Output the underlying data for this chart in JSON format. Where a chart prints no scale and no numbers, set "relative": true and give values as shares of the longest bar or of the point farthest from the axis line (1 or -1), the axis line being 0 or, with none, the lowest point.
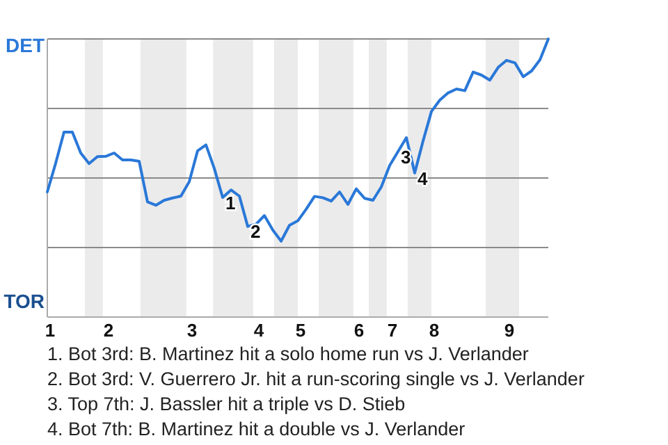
{
  "chart_data": {
    "type": "line",
    "relative": true,
    "grid": "y",
    "marker": "none",
    "line_style": "solid",
    "categories": [
      "1",
      null,
      null,
      null,
      null,
      null,
      null,
      "2",
      null,
      null,
      null,
      null,
      null,
      null,
      null,
      null,
      null,
      "3",
      null,
      null,
      null,
      null,
      null,
      null,
      null,
      "4",
      null,
      null,
      null,
      null,
      "5",
      null,
      null,
      null,
      null,
      null,
      null,
      "6",
      null,
      null,
      null,
      "7",
      null,
      null,
      null,
      null,
      "8",
      null,
      null,
      null,
      null,
      null,
      null,
      null,
      null,
      "9",
      null,
      null,
      null,
      null,
      null
    ],
    "series": [
      {
        "color": "#2a78d8",
        "values": [
          0.45,
          0.553,
          0.665,
          0.665,
          0.59,
          0.552,
          0.577,
          0.578,
          0.59,
          0.565,
          0.565,
          0.56,
          0.414,
          0.402,
          0.42,
          0.428,
          0.435,
          0.487,
          0.598,
          0.619,
          0.534,
          0.43,
          0.457,
          0.435,
          0.326,
          0.334,
          0.365,
          0.313,
          0.273,
          0.33,
          0.346,
          0.388,
          0.434,
          0.429,
          0.417,
          0.45,
          0.405,
          0.461,
          0.427,
          0.42,
          0.468,
          0.545,
          0.595,
          0.645,
          0.518,
          0.633,
          0.739,
          0.78,
          0.806,
          0.82,
          0.814,
          0.881,
          0.87,
          0.852,
          0.898,
          0.923,
          0.914,
          0.864,
          0.885,
          0.925,
          1
        ]
      }
    ],
    "annotations": [
      "DET",
      "TOR",
      {
        "text": "1",
        "y": 0.43
      },
      {
        "text": "2",
        "y": 0.326
      },
      {
        "text": "3",
        "y": 0.595
      },
      {
        "text": "4",
        "y": 0.518
      },
      "1. Bot 3rd: B. Martinez hit a solo home run vs J. Verlander",
      "2. Bot 3rd: V. Guerrero Jr. hit a run-scoring single vs J. Verlander",
      "3. Top 7th: J. Bassler hit a triple vs D. Stieb",
      "4. Bot 7th: B. Martinez hit a double vs J. Verlander"
    ]
  }
}
